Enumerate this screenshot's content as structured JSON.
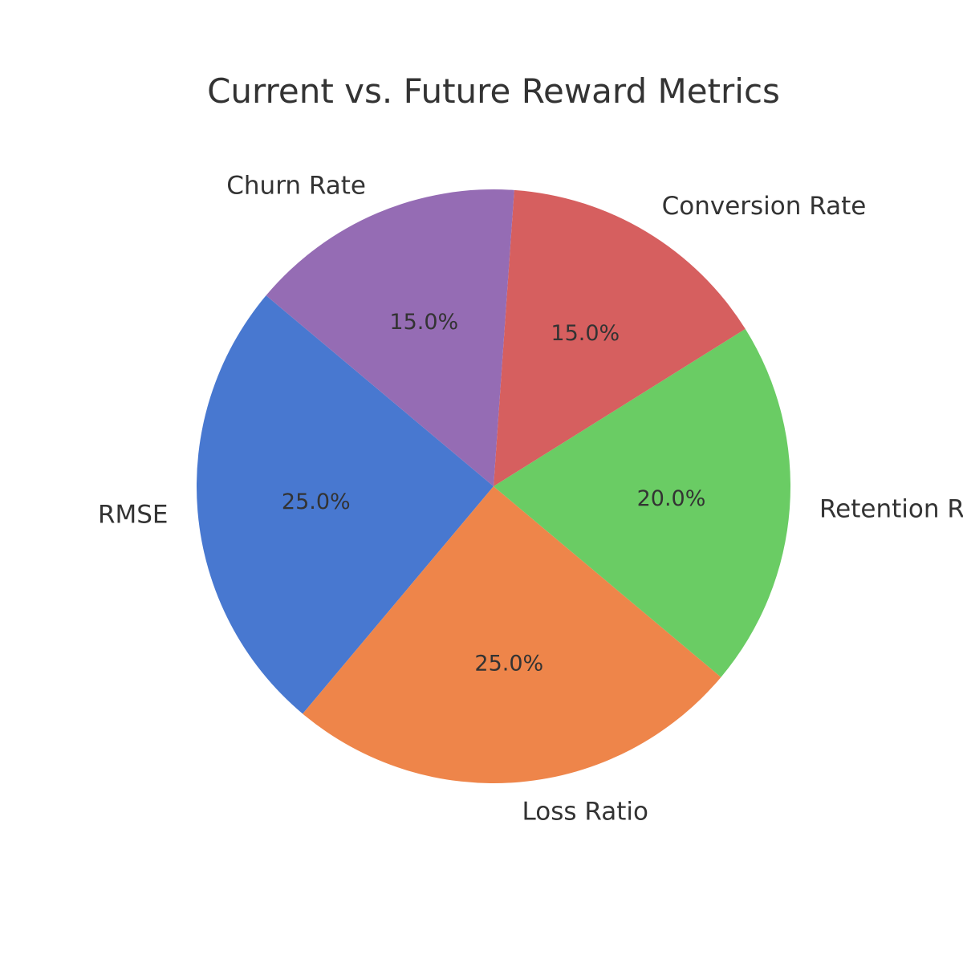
{
  "chart_data": {
    "type": "pie",
    "title": "Current vs. Future Reward Metrics",
    "start_angle_deg": 140,
    "direction": "counterclockwise",
    "slices": [
      {
        "label": "RMSE",
        "value": 25.0,
        "pct_text": "25.0%",
        "color": "#4878d0"
      },
      {
        "label": "Loss Ratio",
        "value": 25.0,
        "pct_text": "25.0%",
        "color": "#ee854a"
      },
      {
        "label": "Retention Rate",
        "value": 20.0,
        "pct_text": "20.0%",
        "color": "#6acc64"
      },
      {
        "label": "Conversion Rate",
        "value": 15.0,
        "pct_text": "15.0%",
        "color": "#d65f5f"
      },
      {
        "label": "Churn Rate",
        "value": 15.0,
        "pct_text": "15.0%",
        "color": "#956cb4"
      }
    ]
  }
}
